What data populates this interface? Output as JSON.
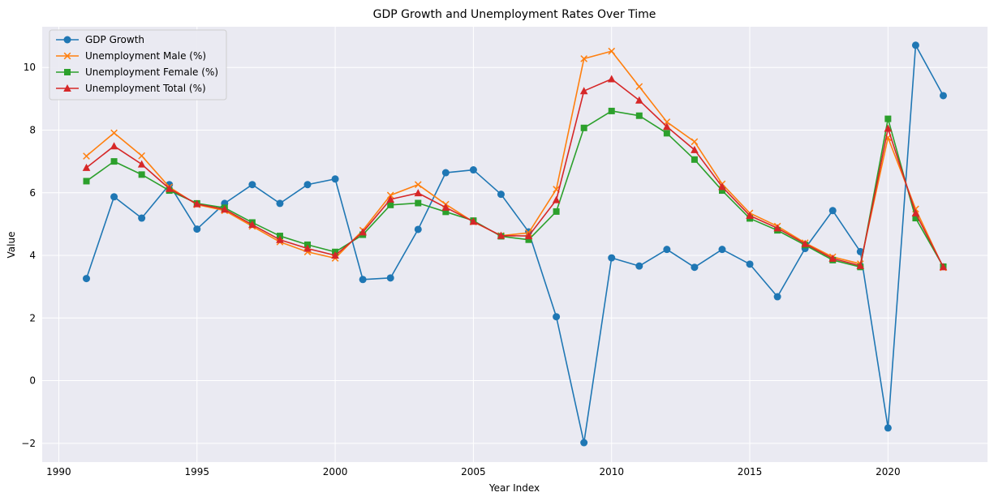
{
  "chart_data": {
    "type": "line",
    "title": "GDP Growth and Unemployment Rates Over Time",
    "xlabel": "Year Index",
    "ylabel": "Value",
    "xlim": [
      1989.4,
      2023.6
    ],
    "ylim": [
      -2.6,
      11.3
    ],
    "xticks": [
      1990,
      1995,
      2000,
      2005,
      2010,
      2015,
      2020
    ],
    "yticks": [
      -2,
      0,
      2,
      4,
      6,
      8,
      10
    ],
    "grid": true,
    "legend_position": "upper-left",
    "background_color": "#eaeaf2",
    "x": [
      1991,
      1992,
      1993,
      1994,
      1995,
      1996,
      1997,
      1998,
      1999,
      2000,
      2001,
      2002,
      2003,
      2004,
      2005,
      2006,
      2007,
      2008,
      2009,
      2010,
      2011,
      2012,
      2013,
      2014,
      2015,
      2016,
      2017,
      2018,
      2019,
      2020,
      2021,
      2022
    ],
    "series": [
      {
        "name": "GDP Growth",
        "color": "#1f77b4",
        "marker": "circle",
        "values": [
          3.26,
          5.87,
          5.19,
          6.26,
          4.84,
          5.66,
          6.26,
          5.66,
          6.26,
          6.44,
          3.23,
          3.28,
          4.83,
          6.64,
          6.73,
          5.95,
          4.75,
          2.04,
          -1.98,
          3.92,
          3.66,
          4.19,
          3.62,
          4.19,
          3.72,
          2.68,
          4.22,
          5.43,
          4.12,
          -1.51,
          10.71,
          9.1
        ]
      },
      {
        "name": "Unemployment Male (%)",
        "color": "#ff7f0e",
        "marker": "x",
        "values": [
          7.17,
          7.91,
          7.18,
          6.18,
          5.62,
          5.43,
          4.93,
          4.43,
          4.11,
          3.91,
          4.8,
          5.92,
          6.26,
          5.63,
          5.07,
          4.63,
          4.72,
          6.11,
          10.28,
          10.52,
          9.39,
          8.26,
          7.63,
          6.28,
          5.35,
          4.93,
          4.4,
          3.95,
          3.73,
          7.76,
          5.48,
          3.61
        ]
      },
      {
        "name": "Unemployment Female (%)",
        "color": "#2ca02c",
        "marker": "square",
        "values": [
          6.37,
          7.0,
          6.58,
          6.07,
          5.66,
          5.52,
          5.05,
          4.62,
          4.34,
          4.11,
          4.66,
          5.61,
          5.67,
          5.39,
          5.11,
          4.61,
          4.5,
          5.4,
          8.07,
          8.61,
          8.46,
          7.9,
          7.06,
          6.07,
          5.18,
          4.8,
          4.33,
          3.85,
          3.63,
          8.36,
          5.19,
          3.64
        ]
      },
      {
        "name": "Unemployment Total (%)",
        "color": "#d62728",
        "marker": "triangle",
        "values": [
          6.8,
          7.49,
          6.91,
          6.13,
          5.64,
          5.47,
          4.98,
          4.5,
          4.22,
          4.0,
          4.74,
          5.79,
          5.99,
          5.53,
          5.08,
          4.63,
          4.62,
          5.77,
          9.25,
          9.63,
          8.95,
          8.11,
          7.37,
          6.19,
          5.27,
          4.87,
          4.37,
          3.9,
          3.67,
          8.05,
          5.35,
          3.63
        ]
      }
    ]
  }
}
